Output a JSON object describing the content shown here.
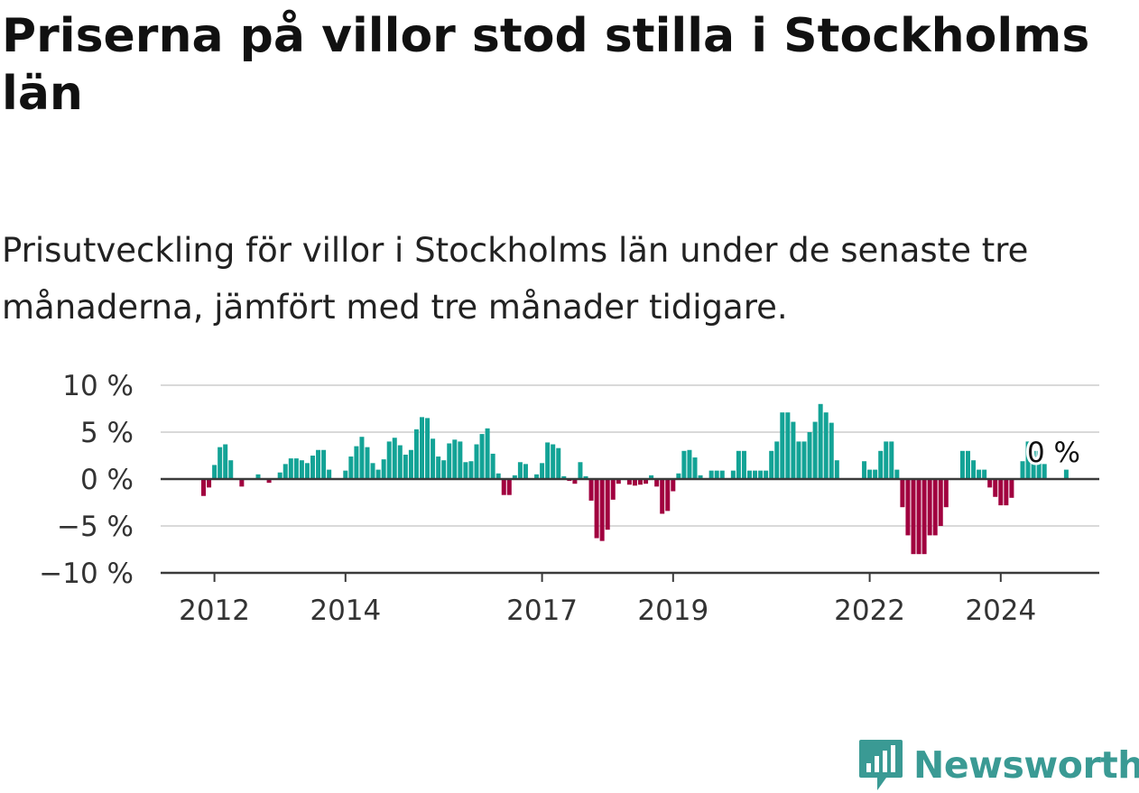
{
  "header": {
    "title": "Priserna på villor stod stilla i Stockholms län",
    "subtitle": "Prisutveckling för villor i Stockholms län under de senaste tre månaderna, jämfört med tre månader tidigare."
  },
  "brand": {
    "name": "Newsworthy",
    "color": "#3a9a94",
    "icon": "bar-chart-chat-icon"
  },
  "chart_data": {
    "type": "bar",
    "title": "",
    "xlabel": "",
    "ylabel": "",
    "ylim": [
      -10,
      10
    ],
    "yticks": [
      10,
      5,
      0,
      -5,
      -10
    ],
    "ytick_labels": [
      "10 %",
      "5 %",
      "0 %",
      "−5 %",
      "−10 %"
    ],
    "xticks": [
      "2012",
      "2014",
      "2017",
      "2019",
      "2022",
      "2024"
    ],
    "x_start": "2011-11",
    "x_end": "2024-09",
    "positive_color": "#13a396",
    "negative_color": "#a1003f",
    "grid": true,
    "annotation": "0 %",
    "values": [
      -1.8,
      -0.9,
      1.5,
      3.4,
      3.7,
      2.0,
      null,
      -0.8,
      null,
      null,
      0.5,
      null,
      -0.4,
      null,
      0.7,
      1.6,
      2.2,
      2.2,
      2.0,
      1.7,
      2.5,
      3.1,
      3.1,
      1.0,
      null,
      null,
      0.9,
      2.4,
      3.5,
      4.5,
      3.4,
      1.7,
      1.0,
      2.1,
      4.0,
      4.4,
      3.6,
      2.6,
      3.1,
      5.3,
      6.6,
      6.5,
      4.3,
      2.4,
      2.0,
      3.8,
      4.2,
      4.0,
      1.8,
      1.9,
      3.7,
      4.8,
      5.4,
      2.7,
      0.6,
      -1.7,
      -1.7,
      0.4,
      1.8,
      1.6,
      null,
      0.5,
      1.7,
      3.9,
      3.7,
      3.3,
      0.3,
      -0.2,
      -0.5,
      1.8,
      0.3,
      -2.3,
      -6.3,
      -6.6,
      -5.4,
      -2.2,
      -0.5,
      null,
      -0.6,
      -0.7,
      -0.6,
      -0.5,
      0.4,
      -0.8,
      -3.7,
      -3.4,
      -1.3,
      0.6,
      3.0,
      3.1,
      2.3,
      0.4,
      null,
      0.9,
      0.9,
      0.9,
      null,
      0.9,
      3.0,
      3.0,
      0.9,
      0.9,
      0.9,
      0.9,
      3.0,
      4.0,
      7.1,
      7.1,
      6.1,
      4.0,
      4.0,
      5.0,
      6.1,
      8.0,
      7.1,
      6.0,
      2.0,
      null,
      null,
      null,
      null,
      1.9,
      1.0,
      1.0,
      3.0,
      4.0,
      4.0,
      1.0,
      -3.0,
      -6.0,
      -8.0,
      -8.0,
      -8.0,
      -6.0,
      -6.0,
      -5.0,
      -3.0,
      null,
      null,
      3.0,
      3.0,
      2.0,
      1.0,
      1.0,
      -0.9,
      -1.9,
      -2.8,
      -2.8,
      -2.0,
      null,
      1.9,
      4.0,
      3.0,
      3.0,
      1.6,
      null,
      null,
      null,
      1.0,
      null
    ]
  }
}
